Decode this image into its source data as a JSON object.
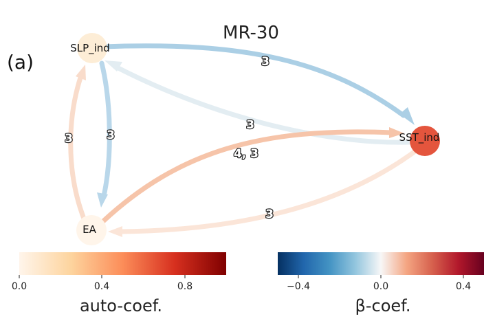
{
  "panel_label": "(a)",
  "title": "MR-30",
  "nodes": [
    {
      "id": "slp",
      "label": "SLP_ind",
      "color": "#fdedd6"
    },
    {
      "id": "sst",
      "label": "SST_ind",
      "color": "#e4553d"
    },
    {
      "id": "ea",
      "label": "EA",
      "color": "#fff5ea"
    }
  ],
  "edges": [
    {
      "id": "slp_to_sst",
      "label": "3",
      "color": "#abcfe5"
    },
    {
      "id": "sst_to_slp",
      "label": "3",
      "color": "#e3edf2"
    },
    {
      "id": "ea_to_sst",
      "label": "4, 3",
      "color": "#f6c4a9"
    },
    {
      "id": "slp_to_ea",
      "label": "3",
      "color": "#b9d7ea"
    },
    {
      "id": "ea_to_slp",
      "label": "3",
      "color": "#f9dccb"
    },
    {
      "id": "sst_to_ea",
      "label": "3",
      "color": "#fbe5d8"
    }
  ],
  "colorbars": {
    "auto": {
      "title": "auto-coef.",
      "ticks": [
        "0.0",
        "0.4",
        "0.8"
      ],
      "stops": [
        "#fff5eb",
        "#fdd49e",
        "#fc8d59",
        "#d7301f",
        "#7f0000"
      ]
    },
    "beta": {
      "title": "β-coef.",
      "ticks": [
        "−0.4",
        "0.0",
        "0.4"
      ],
      "stops": [
        "#053061",
        "#2166ac",
        "#4393c3",
        "#92c5de",
        "#f7f7f7",
        "#f4a582",
        "#d6604d",
        "#b2182b",
        "#67001f"
      ]
    }
  }
}
